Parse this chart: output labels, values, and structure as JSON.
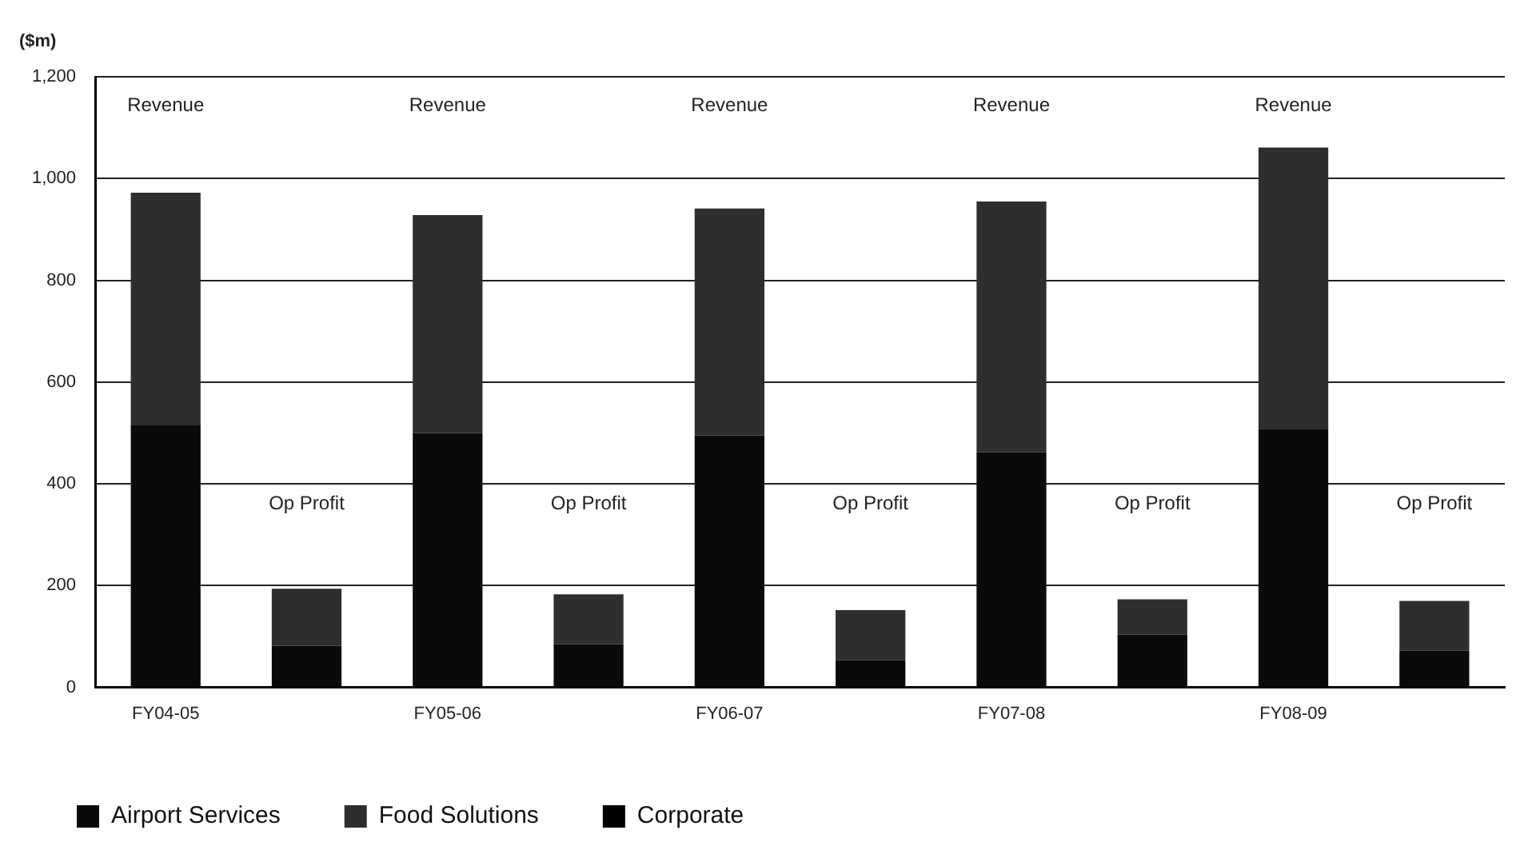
{
  "chart_data": {
    "type": "bar",
    "ylabel": "($m)",
    "categories": [
      "FY04-05",
      null,
      "FY05-06",
      null,
      "FY06-07",
      null,
      "FY07-08",
      null,
      "FY08-09",
      null
    ],
    "series": [
      {
        "name": "Airport Services",
        "color": "#0a0a0a",
        "values": [
          515,
          82,
          500,
          85,
          495,
          53,
          462,
          104,
          508,
          72
        ]
      },
      {
        "name": "Food Solutions",
        "color": "#2e2e2e",
        "values": [
          457,
          112,
          428,
          98,
          446,
          99,
          493,
          69,
          553,
          98
        ]
      },
      {
        "name": "Corporate",
        "color": "#000000",
        "values": [
          null,
          null,
          null,
          null,
          null,
          null,
          null,
          null,
          null,
          null
        ]
      }
    ],
    "stacked": true,
    "ylim": [
      0,
      1200
    ],
    "yticks": [
      0,
      200,
      400,
      600,
      800,
      {
        "value": 1000,
        "label": "1,000"
      },
      {
        "value": 1200,
        "label": "1,200"
      }
    ],
    "grid": "y",
    "legend": "bottom left",
    "annotations": [
      "Revenue",
      "Op Profit",
      "Revenue",
      "Op Profit",
      "Revenue",
      "Op Profit",
      "Revenue",
      "Op Profit",
      "Revenue",
      "Op Profit"
    ]
  }
}
